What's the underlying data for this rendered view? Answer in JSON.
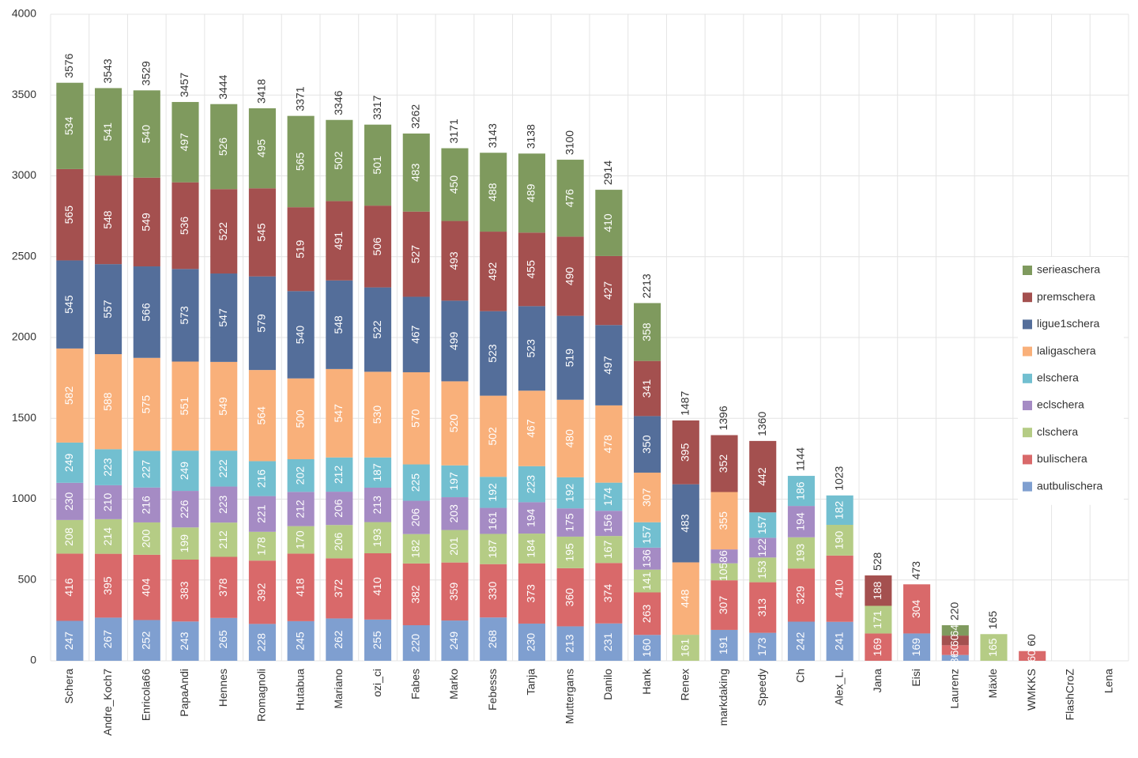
{
  "chart_data": {
    "type": "stacked-bar",
    "categories": [
      "Schera",
      "Andre_Koch7",
      "Enricola66",
      "PapaAndi",
      "Hennes",
      "Romagnoli",
      "Hutabua",
      "Mariano",
      "ozi_ci",
      "Fabes",
      "Marko",
      "Febesss",
      "Tanja",
      "Muttergans",
      "Danilo",
      "Hank",
      "Renex",
      "markdaking",
      "Speedy",
      "Ch",
      "Alex_L.",
      "Jana",
      "Eisi",
      "Laurenz",
      "Mäxle",
      "WMKKS",
      "FlashCroZ",
      "Lena"
    ],
    "series": [
      {
        "name": "autbulischera",
        "color": "#7f9fd0",
        "values": [
          247,
          267,
          252,
          243,
          265,
          228,
          245,
          262,
          255,
          220,
          249,
          268,
          230,
          213,
          231,
          160,
          null,
          191,
          173,
          242,
          241,
          null,
          169,
          36,
          null,
          null,
          null,
          null
        ]
      },
      {
        "name": "bulischera",
        "color": "#d9696a",
        "values": [
          416,
          395,
          404,
          383,
          378,
          392,
          418,
          372,
          410,
          382,
          359,
          330,
          373,
          360,
          374,
          263,
          null,
          307,
          313,
          329,
          410,
          169,
          304,
          60,
          null,
          60,
          null,
          null
        ]
      },
      {
        "name": "clschera",
        "color": "#b5cc85",
        "values": [
          208,
          214,
          200,
          199,
          212,
          178,
          170,
          206,
          193,
          182,
          201,
          187,
          184,
          195,
          167,
          141,
          161,
          105,
          153,
          193,
          190,
          171,
          null,
          null,
          165,
          null,
          null,
          null
        ]
      },
      {
        "name": "eclschera",
        "color": "#a58bc4",
        "values": [
          230,
          210,
          216,
          226,
          223,
          221,
          212,
          206,
          213,
          206,
          203,
          161,
          194,
          175,
          156,
          136,
          null,
          86,
          122,
          194,
          null,
          null,
          null,
          null,
          null,
          null,
          null,
          null
        ]
      },
      {
        "name": "elschera",
        "color": "#72bfd0",
        "values": [
          249,
          223,
          227,
          249,
          222,
          216,
          202,
          212,
          187,
          225,
          197,
          192,
          223,
          192,
          174,
          157,
          null,
          null,
          157,
          186,
          182,
          null,
          null,
          null,
          null,
          null,
          null,
          null
        ]
      },
      {
        "name": "laligaschera",
        "color": "#f9b07a",
        "values": [
          582,
          588,
          575,
          551,
          549,
          564,
          500,
          547,
          530,
          570,
          520,
          502,
          467,
          480,
          478,
          307,
          448,
          355,
          null,
          null,
          null,
          null,
          null,
          null,
          null,
          null,
          null,
          null
        ]
      },
      {
        "name": "ligue1schera",
        "color": "#546e9a",
        "values": [
          545,
          557,
          566,
          573,
          547,
          579,
          540,
          548,
          522,
          467,
          499,
          523,
          523,
          519,
          497,
          350,
          483,
          null,
          null,
          null,
          null,
          null,
          null,
          null,
          null,
          null,
          null,
          null
        ]
      },
      {
        "name": "premschera",
        "color": "#a4504f",
        "values": [
          565,
          548,
          549,
          536,
          522,
          545,
          519,
          491,
          506,
          527,
          493,
          492,
          455,
          490,
          427,
          341,
          395,
          352,
          442,
          null,
          null,
          188,
          null,
          60,
          null,
          null,
          null,
          null
        ]
      },
      {
        "name": "serieaschera",
        "color": "#7f9a5e",
        "values": [
          534,
          541,
          540,
          497,
          526,
          495,
          565,
          502,
          501,
          483,
          450,
          488,
          489,
          476,
          410,
          358,
          null,
          null,
          null,
          null,
          null,
          null,
          null,
          64,
          null,
          null,
          null,
          null
        ]
      }
    ],
    "totals": [
      3576,
      3543,
      3529,
      3457,
      3444,
      3418,
      3371,
      3346,
      3317,
      3262,
      3171,
      3143,
      3138,
      3100,
      2914,
      2213,
      1487,
      1396,
      1360,
      1144,
      1023,
      528,
      473,
      220,
      165,
      60,
      null,
      null
    ],
    "ylim": [
      0,
      4000
    ],
    "yticks": [
      0,
      500,
      1000,
      1500,
      2000,
      2500,
      3000,
      3500,
      4000
    ],
    "grid": true,
    "legend": "right"
  }
}
